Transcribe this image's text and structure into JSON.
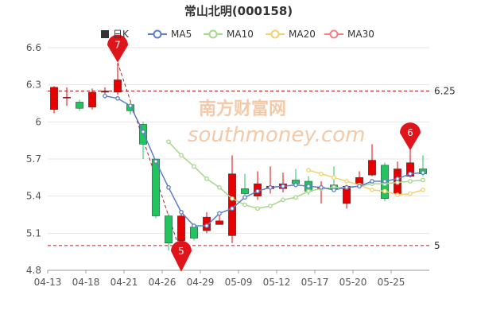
{
  "chart_data": {
    "type": "candlestick",
    "title": "常山北明(000158)",
    "ylim": [
      4.8,
      6.6
    ],
    "y_ticks": [
      "6.6",
      "6.3",
      "6",
      "5.7",
      "5.4",
      "5.1",
      "4.8"
    ],
    "x_ticks": [
      "04-13",
      "04-18",
      "04-21",
      "04-26",
      "04-29",
      "05-09",
      "05-12",
      "05-17",
      "05-20",
      "05-25"
    ],
    "legend": [
      {
        "label": "日K",
        "color": "#333333"
      },
      {
        "label": "MA5",
        "color": "#5b7ec8"
      },
      {
        "label": "MA10",
        "color": "#a6d78a"
      },
      {
        "label": "MA20",
        "color": "#f5d06c"
      },
      {
        "label": "MA30",
        "color": "#f08080"
      }
    ],
    "up_color": "#e60000",
    "down_color": "#21c45e",
    "watermark": {
      "cn": "南方财富网",
      "url": "southmoney.com"
    },
    "ref_lines": [
      {
        "label": "6.25",
        "value": 6.25
      },
      {
        "label": "5",
        "value": 5.0
      }
    ],
    "pins": [
      {
        "label": "7",
        "index": 5,
        "value": 6.48
      },
      {
        "label": "5",
        "index": 10,
        "value": 4.93
      },
      {
        "label": "6",
        "index": 28,
        "value": 5.77
      }
    ],
    "candles": [
      {
        "o": 6.1,
        "c": 6.28,
        "h": 6.29,
        "l": 6.07
      },
      {
        "o": 6.2,
        "c": 6.2,
        "h": 6.28,
        "l": 6.13
      },
      {
        "o": 6.16,
        "c": 6.11,
        "h": 6.18,
        "l": 6.09
      },
      {
        "o": 6.12,
        "c": 6.24,
        "h": 6.27,
        "l": 6.1
      },
      {
        "o": 6.24,
        "c": 6.25,
        "h": 6.28,
        "l": 6.19
      },
      {
        "o": 6.24,
        "c": 6.34,
        "h": 6.47,
        "l": 6.22
      },
      {
        "o": 6.14,
        "c": 6.09,
        "h": 6.16,
        "l": 6.06
      },
      {
        "o": 5.98,
        "c": 5.82,
        "h": 6.0,
        "l": 5.7
      },
      {
        "o": 5.7,
        "c": 5.24,
        "h": 5.7,
        "l": 5.22
      },
      {
        "o": 5.24,
        "c": 5.02,
        "h": 5.26,
        "l": 4.96
      },
      {
        "o": 5.04,
        "c": 5.24,
        "h": 5.26,
        "l": 4.88
      },
      {
        "o": 5.15,
        "c": 5.06,
        "h": 5.16,
        "l": 5.04
      },
      {
        "o": 5.12,
        "c": 5.23,
        "h": 5.27,
        "l": 5.1
      },
      {
        "o": 5.17,
        "c": 5.2,
        "h": 5.27,
        "l": 5.17
      },
      {
        "o": 5.08,
        "c": 5.58,
        "h": 5.73,
        "l": 5.02
      },
      {
        "o": 5.46,
        "c": 5.42,
        "h": 5.58,
        "l": 5.41
      },
      {
        "o": 5.4,
        "c": 5.5,
        "h": 5.6,
        "l": 5.37
      },
      {
        "o": 5.46,
        "c": 5.48,
        "h": 5.64,
        "l": 5.42
      },
      {
        "o": 5.46,
        "c": 5.5,
        "h": 5.59,
        "l": 5.43
      },
      {
        "o": 5.53,
        "c": 5.5,
        "h": 5.62,
        "l": 5.48
      },
      {
        "o": 5.52,
        "c": 5.44,
        "h": 5.56,
        "l": 5.41
      },
      {
        "o": 5.47,
        "c": 5.47,
        "h": 5.52,
        "l": 5.34
      },
      {
        "o": 5.49,
        "c": 5.46,
        "h": 5.64,
        "l": 5.44
      },
      {
        "o": 5.34,
        "c": 5.48,
        "h": 5.49,
        "l": 5.3
      },
      {
        "o": 5.5,
        "c": 5.55,
        "h": 5.6,
        "l": 5.47
      },
      {
        "o": 5.57,
        "c": 5.69,
        "h": 5.82,
        "l": 5.56
      },
      {
        "o": 5.65,
        "c": 5.38,
        "h": 5.67,
        "l": 5.36
      },
      {
        "o": 5.42,
        "c": 5.62,
        "h": 5.68,
        "l": 5.4
      },
      {
        "o": 5.56,
        "c": 5.67,
        "h": 5.88,
        "l": 5.55
      },
      {
        "o": 5.62,
        "c": 5.58,
        "h": 5.73,
        "l": 5.56
      }
    ],
    "ma5": [
      null,
      null,
      null,
      null,
      6.21,
      6.19,
      6.13,
      5.92,
      5.68,
      5.47,
      5.27,
      5.16,
      5.16,
      5.26,
      5.3,
      5.39,
      5.44,
      5.47,
      5.48,
      5.49,
      5.48,
      5.47,
      5.45,
      5.47,
      5.48,
      5.52,
      5.52,
      5.54,
      5.58,
      5.59
    ],
    "ma10": [
      null,
      null,
      null,
      null,
      null,
      null,
      null,
      null,
      null,
      5.84,
      5.73,
      5.64,
      5.54,
      5.47,
      5.38,
      5.33,
      5.3,
      5.32,
      5.37,
      5.39,
      5.44,
      5.46,
      5.47,
      5.47,
      5.48,
      5.5,
      5.5,
      5.51,
      5.52,
      5.53
    ],
    "ma20": [
      null,
      null,
      null,
      null,
      null,
      null,
      null,
      null,
      null,
      null,
      null,
      null,
      null,
      null,
      null,
      null,
      null,
      null,
      null,
      null,
      5.61,
      5.58,
      5.55,
      5.52,
      5.49,
      5.45,
      5.44,
      5.41,
      5.42,
      5.45
    ]
  }
}
